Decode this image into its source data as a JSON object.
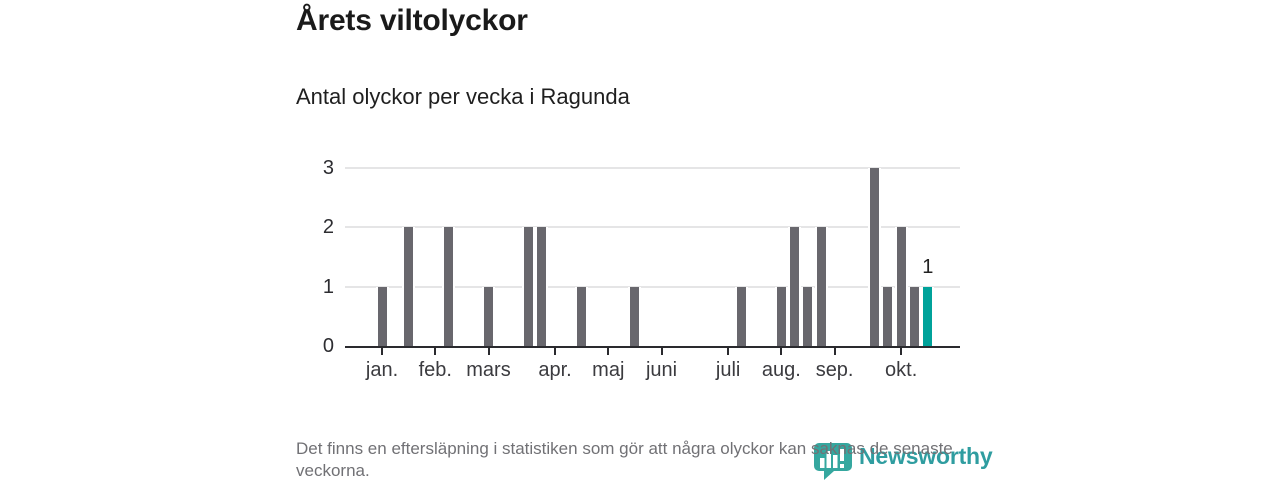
{
  "header": {
    "title": "Årets viltolyckor",
    "subtitle": "Antal olyckor per vecka i Ragunda"
  },
  "footer": {
    "note": "Det finns en eftersläpning i statistiken som gör att några olyckor kan saknas de senaste veckorna.",
    "logo_text": "Newsworthy"
  },
  "chart_data": {
    "type": "bar",
    "title": "Årets viltolyckor",
    "subtitle": "Antal olyckor per vecka i Ragunda",
    "ylim": [
      0,
      3
    ],
    "yticks": [
      0,
      1,
      2,
      3
    ],
    "grid": "horizontal",
    "x_domain_weeks": [
      -2.78,
      43.42
    ],
    "bars": [
      {
        "week": 0,
        "value": 1
      },
      {
        "week": 2,
        "value": 2
      },
      {
        "week": 5,
        "value": 2
      },
      {
        "week": 8,
        "value": 1
      },
      {
        "week": 11,
        "value": 2
      },
      {
        "week": 12,
        "value": 2
      },
      {
        "week": 15,
        "value": 1
      },
      {
        "week": 19,
        "value": 1
      },
      {
        "week": 27,
        "value": 1
      },
      {
        "week": 30,
        "value": 1
      },
      {
        "week": 31,
        "value": 2
      },
      {
        "week": 32,
        "value": 1
      },
      {
        "week": 33,
        "value": 2
      },
      {
        "week": 37,
        "value": 3
      },
      {
        "week": 38,
        "value": 1
      },
      {
        "week": 39,
        "value": 2
      },
      {
        "week": 40,
        "value": 1
      },
      {
        "week": 41,
        "value": 1,
        "highlight": true,
        "data_label": "1"
      }
    ],
    "xticks": [
      {
        "week": 0,
        "label": "jan."
      },
      {
        "week": 4,
        "label": "feb."
      },
      {
        "week": 8,
        "label": "mars"
      },
      {
        "week": 13,
        "label": "apr."
      },
      {
        "week": 17,
        "label": "maj"
      },
      {
        "week": 21,
        "label": "juni"
      },
      {
        "week": 26,
        "label": "juli"
      },
      {
        "week": 30,
        "label": "aug."
      },
      {
        "week": 34,
        "label": "sep."
      },
      {
        "week": 39,
        "label": "okt."
      }
    ],
    "colors": {
      "bar": "#68676d",
      "highlight": "#00a29a",
      "grid": "#e5e5e6",
      "axis": "#2a2a2e",
      "tick_label": "#3b3b3f",
      "value_label": "#222222",
      "logo_teal": "#35a79f",
      "logo_word_teal": "#2f9da0"
    }
  }
}
